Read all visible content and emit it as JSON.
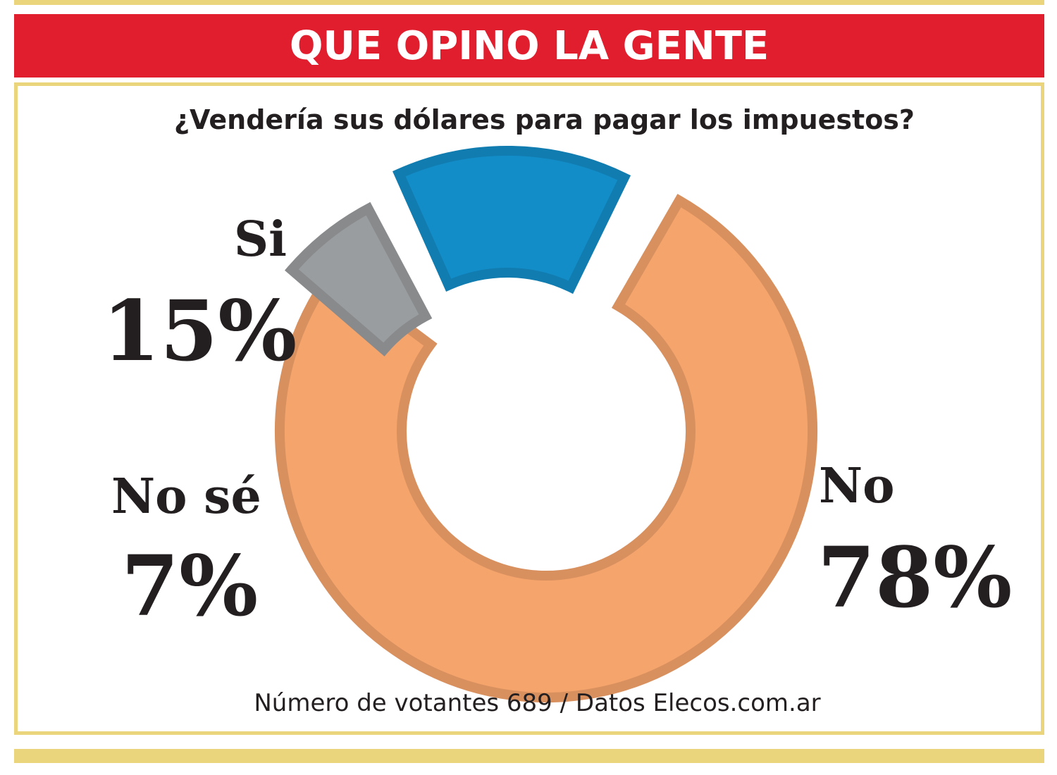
{
  "header": {
    "title": "QUE OPINO LA GENTE"
  },
  "question": "¿Vendería sus dólares para pagar los impuestos?",
  "footer": "Número de votantes 689 / Datos Elecos.com.ar",
  "chart_data": {
    "type": "pie",
    "style": "donut, exploded slices",
    "categories": [
      "Si",
      "No",
      "No sé"
    ],
    "values": [
      15,
      78,
      7
    ],
    "value_labels": [
      "15%",
      "78%",
      "7%"
    ],
    "colors": [
      "#138dc8",
      "#f5a46c",
      "#9a9d9f"
    ],
    "title": "¿Vendería sus dólares para pagar los impuestos?",
    "unit": "%"
  },
  "colors": {
    "header_red": "#e01e2e",
    "frame_gold": "#ead47c",
    "text": "#231f20"
  }
}
